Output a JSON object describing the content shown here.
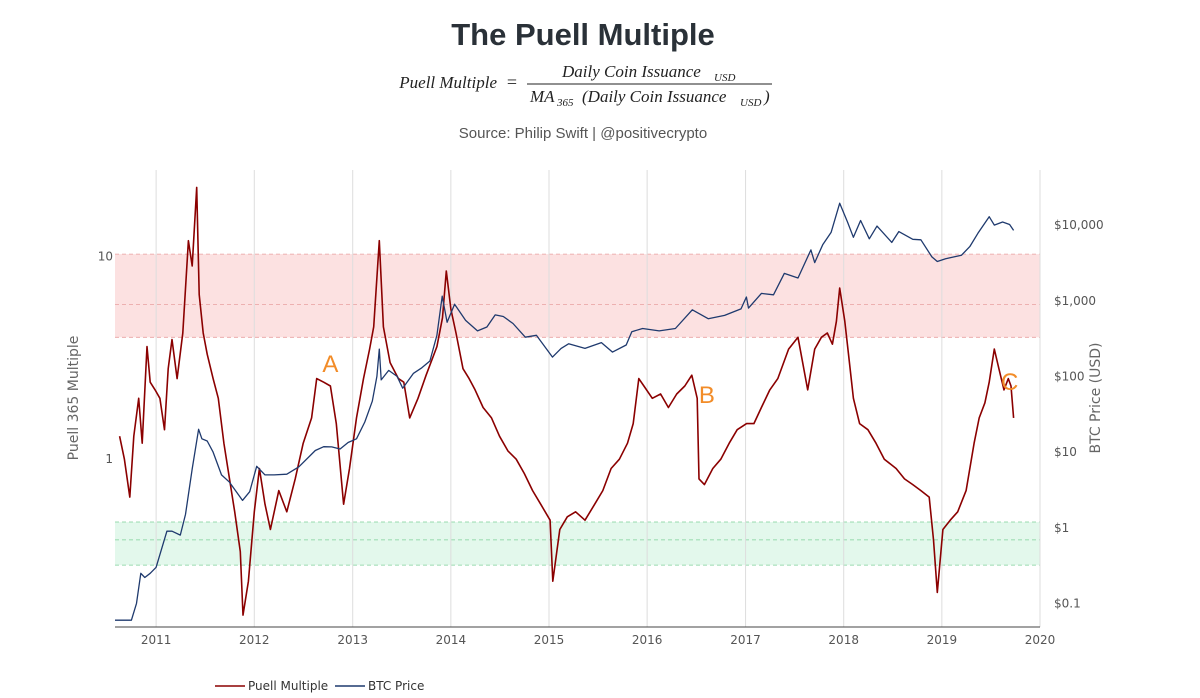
{
  "chart_data": {
    "type": "line",
    "title": "The Puell Multiple",
    "formula": {
      "lhs": "Puell Multiple",
      "equals": "=",
      "numerator": "Daily Coin Issuance",
      "numerator_sub": "USD",
      "denominator_prefix": "MA",
      "denominator_prefix_sub": "365",
      "denominator": "(Daily Coin Issuance",
      "denominator_sub": "USD",
      "denominator_close": ")"
    },
    "source": "Source: Philip Swift | @positivecrypto",
    "ylabel_left": "Puell 365 Multiple",
    "ylabel_right": "BTC Price (USD)",
    "xlabel": "",
    "x_range": [
      "2010-08-01",
      "2020-01-01"
    ],
    "y_left_scale": "log",
    "y_left_range": [
      0.1485,
      26.8
    ],
    "y_left_ticks": [
      {
        "value": 1,
        "label": "1"
      },
      {
        "value": 10,
        "label": "10"
      }
    ],
    "y_right_scale": "log",
    "y_right_range": [
      0.0488,
      53500
    ],
    "y_right_ticks": [
      {
        "value": 0.1,
        "label": "$0.1"
      },
      {
        "value": 1,
        "label": "$1"
      },
      {
        "value": 10,
        "label": "$10"
      },
      {
        "value": 100,
        "label": "$100"
      },
      {
        "value": 1000,
        "label": "$1,000"
      },
      {
        "value": 10000,
        "label": "$10,000"
      }
    ],
    "x_ticks": [
      {
        "date": "2011-01-01",
        "label": "2011"
      },
      {
        "date": "2012-01-01",
        "label": "2012"
      },
      {
        "date": "2013-01-01",
        "label": "2013"
      },
      {
        "date": "2014-01-01",
        "label": "2014"
      },
      {
        "date": "2015-01-01",
        "label": "2015"
      },
      {
        "date": "2016-01-01",
        "label": "2016"
      },
      {
        "date": "2017-01-01",
        "label": "2017"
      },
      {
        "date": "2018-01-01",
        "label": "2018"
      },
      {
        "date": "2019-01-01",
        "label": "2019"
      },
      {
        "date": "2020-01-01",
        "label": "2020"
      }
    ],
    "grid": true,
    "bands": [
      {
        "name": "high",
        "from": 4,
        "to": 10.3,
        "mid": 5.8,
        "color": "#fce1e1"
      },
      {
        "name": "low",
        "from": 0.3,
        "to": 0.49,
        "mid": 0.4,
        "color": "#e3f8ec"
      }
    ],
    "annotations": [
      {
        "label": "A",
        "date": "2012-10-10",
        "value": 2.7
      },
      {
        "label": "B",
        "date": "2016-08-10",
        "value": 1.9
      },
      {
        "label": "C",
        "date": "2019-09-10",
        "value": 2.2
      }
    ],
    "legend_position": "bottom-left",
    "series": [
      {
        "name": "Puell Multiple",
        "axis": "left",
        "color": "#8b0000",
        "x": [
          "2010-08-18",
          "2010-09-05",
          "2010-09-25",
          "2010-10-10",
          "2010-10-28",
          "2010-11-10",
          "2010-11-28",
          "2010-12-10",
          "2010-12-28",
          "2011-01-15",
          "2011-02-01",
          "2011-02-15",
          "2011-03-01",
          "2011-03-20",
          "2011-04-10",
          "2011-05-01",
          "2011-05-15",
          "2011-06-01",
          "2011-06-10",
          "2011-06-25",
          "2011-07-10",
          "2011-08-01",
          "2011-08-20",
          "2011-09-10",
          "2011-10-01",
          "2011-10-20",
          "2011-11-10",
          "2011-11-20",
          "2011-12-10",
          "2012-01-01",
          "2012-01-20",
          "2012-02-10",
          "2012-03-01",
          "2012-04-01",
          "2012-05-01",
          "2012-06-01",
          "2012-07-01",
          "2012-08-01",
          "2012-08-20",
          "2012-09-15",
          "2012-10-10",
          "2012-11-01",
          "2012-11-28",
          "2012-12-20",
          "2013-01-15",
          "2013-02-10",
          "2013-03-05",
          "2013-03-20",
          "2013-04-10",
          "2013-04-25",
          "2013-05-20",
          "2013-06-20",
          "2013-07-10",
          "2013-08-01",
          "2013-09-01",
          "2013-10-01",
          "2013-11-10",
          "2013-12-01",
          "2013-12-15",
          "2014-01-01",
          "2014-01-20",
          "2014-02-15",
          "2014-03-10",
          "2014-04-01",
          "2014-05-01",
          "2014-06-01",
          "2014-07-01",
          "2014-08-01",
          "2014-09-01",
          "2014-10-01",
          "2014-11-01",
          "2014-12-01",
          "2015-01-05",
          "2015-01-15",
          "2015-02-10",
          "2015-03-10",
          "2015-04-10",
          "2015-05-15",
          "2015-06-20",
          "2015-07-20",
          "2015-08-20",
          "2015-09-20",
          "2015-10-20",
          "2015-11-10",
          "2015-12-01",
          "2015-12-20",
          "2016-01-20",
          "2016-02-20",
          "2016-03-20",
          "2016-04-20",
          "2016-05-20",
          "2016-06-15",
          "2016-07-05",
          "2016-07-12",
          "2016-08-01",
          "2016-09-01",
          "2016-10-01",
          "2016-11-01",
          "2016-12-01",
          "2017-01-05",
          "2017-02-01",
          "2017-03-01",
          "2017-04-01",
          "2017-05-01",
          "2017-06-10",
          "2017-07-15",
          "2017-08-20",
          "2017-09-15",
          "2017-10-10",
          "2017-11-01",
          "2017-11-20",
          "2017-12-05",
          "2017-12-17",
          "2018-01-05",
          "2018-01-20",
          "2018-02-06",
          "2018-03-01",
          "2018-04-01",
          "2018-05-01",
          "2018-06-01",
          "2018-07-15",
          "2018-08-15",
          "2018-09-15",
          "2018-10-15",
          "2018-11-15",
          "2018-12-01",
          "2018-12-15",
          "2019-01-05",
          "2019-02-01",
          "2019-03-01",
          "2019-04-01",
          "2019-05-01",
          "2019-05-20",
          "2019-06-10",
          "2019-06-26",
          "2019-07-15",
          "2019-08-01",
          "2019-08-20",
          "2019-09-05",
          "2019-09-15",
          "2019-09-25"
        ],
        "values": [
          1.3,
          1.0,
          0.65,
          1.3,
          2.0,
          1.2,
          3.6,
          2.4,
          2.2,
          2.0,
          1.4,
          2.8,
          3.9,
          2.5,
          4.2,
          12.0,
          9.0,
          22.0,
          6.5,
          4.2,
          3.3,
          2.5,
          2.0,
          1.2,
          0.8,
          0.55,
          0.35,
          0.17,
          0.25,
          0.55,
          0.9,
          0.6,
          0.45,
          0.7,
          0.55,
          0.8,
          1.2,
          1.6,
          2.5,
          2.4,
          2.3,
          1.5,
          0.6,
          0.9,
          1.6,
          2.5,
          3.5,
          4.5,
          12.0,
          4.5,
          3.0,
          2.5,
          2.4,
          1.6,
          2.0,
          2.6,
          3.6,
          5.0,
          8.5,
          5.5,
          4.2,
          2.8,
          2.5,
          2.2,
          1.8,
          1.6,
          1.3,
          1.1,
          1.0,
          0.85,
          0.7,
          0.6,
          0.5,
          0.25,
          0.45,
          0.52,
          0.55,
          0.5,
          0.6,
          0.7,
          0.9,
          1.0,
          1.2,
          1.5,
          2.5,
          2.3,
          2.0,
          2.1,
          1.8,
          2.1,
          2.3,
          2.6,
          2.0,
          0.8,
          0.75,
          0.9,
          1.0,
          1.2,
          1.4,
          1.5,
          1.5,
          1.8,
          2.2,
          2.5,
          3.5,
          4.0,
          2.2,
          3.5,
          4.0,
          4.2,
          3.7,
          4.8,
          7.0,
          4.8,
          3.2,
          2.0,
          1.5,
          1.4,
          1.2,
          1.0,
          0.9,
          0.8,
          0.75,
          0.7,
          0.65,
          0.4,
          0.22,
          0.45,
          0.5,
          0.55,
          0.7,
          1.2,
          1.6,
          1.9,
          2.4,
          3.5,
          2.8,
          2.2,
          2.5,
          2.3,
          1.6
        ]
      },
      {
        "name": "BTC Price",
        "axis": "right",
        "color": "#1f3a6e",
        "x": [
          "2010-08-01",
          "2010-09-01",
          "2010-10-01",
          "2010-10-20",
          "2010-11-05",
          "2010-11-20",
          "2010-12-10",
          "2011-01-01",
          "2011-02-10",
          "2011-03-01",
          "2011-04-01",
          "2011-04-20",
          "2011-05-15",
          "2011-06-08",
          "2011-06-20",
          "2011-07-10",
          "2011-08-01",
          "2011-09-01",
          "2011-10-01",
          "2011-11-18",
          "2011-12-15",
          "2012-01-10",
          "2012-02-10",
          "2012-03-15",
          "2012-05-01",
          "2012-06-15",
          "2012-08-15",
          "2012-09-15",
          "2012-10-15",
          "2012-11-15",
          "2012-12-15",
          "2013-01-15",
          "2013-02-15",
          "2013-03-15",
          "2013-04-01",
          "2013-04-10",
          "2013-04-17",
          "2013-05-15",
          "2013-06-15",
          "2013-07-06",
          "2013-08-15",
          "2013-09-15",
          "2013-10-15",
          "2013-11-10",
          "2013-11-30",
          "2013-12-18",
          "2014-01-15",
          "2014-02-25",
          "2014-04-10",
          "2014-05-15",
          "2014-06-15",
          "2014-07-15",
          "2014-08-20",
          "2014-10-05",
          "2014-11-15",
          "2015-01-14",
          "2015-02-15",
          "2015-03-15",
          "2015-05-15",
          "2015-07-15",
          "2015-08-25",
          "2015-10-15",
          "2015-11-05",
          "2015-12-15",
          "2016-02-15",
          "2016-04-15",
          "2016-06-17",
          "2016-08-15",
          "2016-10-15",
          "2016-12-15",
          "2017-01-04",
          "2017-01-12",
          "2017-03-01",
          "2017-04-15",
          "2017-05-25",
          "2017-07-15",
          "2017-09-01",
          "2017-09-15",
          "2017-10-15",
          "2017-11-15",
          "2017-12-17",
          "2018-01-15",
          "2018-02-06",
          "2018-03-05",
          "2018-04-06",
          "2018-05-05",
          "2018-06-29",
          "2018-07-25",
          "2018-09-15",
          "2018-10-15",
          "2018-11-25",
          "2018-12-15",
          "2019-01-15",
          "2019-02-15",
          "2019-03-15",
          "2019-04-15",
          "2019-05-15",
          "2019-06-26",
          "2019-07-15",
          "2019-08-15",
          "2019-09-10",
          "2019-09-25"
        ],
        "values": [
          0.06,
          0.06,
          0.06,
          0.1,
          0.25,
          0.22,
          0.25,
          0.3,
          0.9,
          0.9,
          0.8,
          1.5,
          6.0,
          20.0,
          15.0,
          14.0,
          10.0,
          5.0,
          4.0,
          2.3,
          3.0,
          6.5,
          5.0,
          5.0,
          5.1,
          6.4,
          10.5,
          11.8,
          11.7,
          11.0,
          13.4,
          15.0,
          25.0,
          47.0,
          100.0,
          230.0,
          90.0,
          120.0,
          100.0,
          70.0,
          110.0,
          130.0,
          160.0,
          350.0,
          1150.0,
          520.0,
          900.0,
          550.0,
          400.0,
          450.0,
          650.0,
          620.0,
          500.0,
          330.0,
          350.0,
          180.0,
          235.0,
          270.0,
          235.0,
          280.0,
          210.0,
          260.0,
          390.0,
          430.0,
          400.0,
          430.0,
          760.0,
          580.0,
          640.0,
          780.0,
          1120.0,
          800.0,
          1250.0,
          1200.0,
          2300.0,
          2000.0,
          4700.0,
          3200.0,
          5500.0,
          8000.0,
          19500.0,
          11000.0,
          6900.0,
          11500.0,
          6600.0,
          9700.0,
          5900.0,
          8200.0,
          6500.0,
          6400.0,
          3800.0,
          3300.0,
          3600.0,
          3800.0,
          4000.0,
          5200.0,
          7800.0,
          12900.0,
          10000.0,
          11000.0,
          10200.0,
          8500.0
        ]
      }
    ]
  }
}
